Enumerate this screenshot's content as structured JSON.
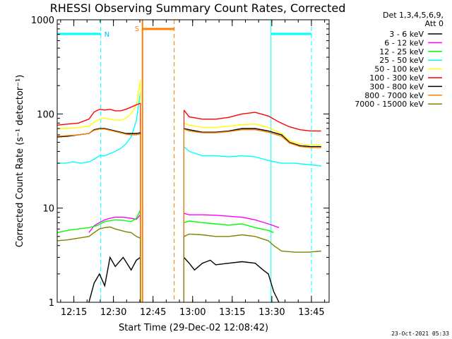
{
  "chart_data": {
    "type": "line",
    "title": "RHESSI Observing Summary Count Rates, Corrected",
    "xlabel": "Start Time (29-Dec-02 12:08:42)",
    "ylabel": "Corrected Count Rate (s⁻¹ detector⁻¹)",
    "yscale": "log",
    "ylim": [
      1,
      1000
    ],
    "y_ticks": [
      "1",
      "10",
      "100",
      "1000"
    ],
    "xlim_minutes": [
      0,
      103
    ],
    "x_ticks": [
      {
        "label": "12:15",
        "minute": 6.3
      },
      {
        "label": "12:30",
        "minute": 21.3
      },
      {
        "label": "12:45",
        "minute": 36.3
      },
      {
        "label": "13:00",
        "minute": 51.3
      },
      {
        "label": "13:15",
        "minute": 66.3
      },
      {
        "label": "13:30",
        "minute": 81.3
      },
      {
        "label": "13:45",
        "minute": 96.3
      }
    ],
    "detector_info": [
      "Det 1,3,4,5,6,9,",
      "Att 0"
    ],
    "timestamp": "23-Oct-2021 05:33",
    "data_gap_minutes": [
      31.8,
      47.8
    ],
    "night_intervals": [
      {
        "label": "N",
        "start": 0,
        "end": 16.5
      },
      {
        "label": "",
        "start": 81.0,
        "end": 96.3
      }
    ],
    "saa_interval": {
      "label": "S",
      "start": 32.3,
      "end": 44.3
    },
    "series": [
      {
        "name": "3 - 6 keV",
        "color": "#000000",
        "x": [
          12,
          14,
          16,
          18,
          20,
          22,
          25,
          28,
          30,
          31.5,
          48,
          50,
          52,
          55,
          58,
          60,
          65,
          70,
          75,
          78,
          80,
          82,
          84
        ],
        "y": [
          1.0,
          1.6,
          2.0,
          1.5,
          3.0,
          2.4,
          3.0,
          2.2,
          2.8,
          3.0,
          3.0,
          2.6,
          2.2,
          2.6,
          2.8,
          2.5,
          2.6,
          2.7,
          2.6,
          2.2,
          2.0,
          1.3,
          1.0
        ]
      },
      {
        "name": "6 - 12 keV",
        "color": "#ff00ff",
        "x": [
          12,
          14,
          16,
          18,
          20,
          22,
          25,
          28,
          30,
          31.5,
          48,
          50,
          55,
          60,
          65,
          70,
          75,
          80,
          82,
          84
        ],
        "y": [
          5.5,
          6.5,
          7.0,
          7.5,
          7.8,
          8.0,
          8.0,
          7.8,
          7.6,
          8.5,
          8.8,
          8.5,
          8.5,
          8.4,
          8.2,
          8.0,
          7.5,
          6.8,
          6.5,
          6.2
        ]
      },
      {
        "name": "12 - 25 keV",
        "color": "#00ff00",
        "x": [
          0,
          4,
          8,
          12,
          15,
          18,
          22,
          25,
          28,
          30,
          31.5,
          48,
          50,
          55,
          60,
          65,
          70,
          75,
          80,
          82
        ],
        "y": [
          5.5,
          5.8,
          6.0,
          6.2,
          6.5,
          7.2,
          7.5,
          7.4,
          7.2,
          7.8,
          9.5,
          7.0,
          7.3,
          7.0,
          6.8,
          6.6,
          6.8,
          6.2,
          5.8,
          5.5
        ]
      },
      {
        "name": "25 - 50 keV",
        "color": "#00ffff",
        "x": [
          0,
          3,
          6,
          9,
          12,
          14,
          16,
          18,
          20,
          22,
          24,
          26,
          28,
          30,
          31.5,
          48,
          50,
          55,
          60,
          65,
          70,
          75,
          80,
          85,
          90,
          95,
          100
        ],
        "y": [
          30,
          30,
          31,
          30,
          31,
          33,
          36,
          36,
          38,
          40,
          43,
          48,
          57,
          85,
          170,
          45,
          40,
          36,
          36,
          35,
          36,
          35,
          32,
          30,
          30,
          29,
          28
        ]
      },
      {
        "name": "50 - 100 keV",
        "color": "#ffff00",
        "x": [
          0,
          4,
          8,
          12,
          14,
          16,
          18,
          20,
          22,
          24,
          26,
          28,
          30,
          31.5,
          48,
          50,
          55,
          60,
          65,
          70,
          75,
          80,
          85,
          88,
          92,
          96,
          100
        ],
        "y": [
          70,
          70,
          72,
          74,
          82,
          88,
          90,
          88,
          86,
          86,
          90,
          100,
          125,
          230,
          80,
          76,
          72,
          72,
          74,
          77,
          78,
          72,
          62,
          52,
          48,
          47,
          47
        ]
      },
      {
        "name": "100 - 300 keV",
        "color": "#ff0000",
        "x": [
          0,
          4,
          8,
          12,
          14,
          16,
          18,
          20,
          22,
          24,
          26,
          28,
          30,
          31.5,
          48,
          50,
          55,
          60,
          65,
          70,
          75,
          80,
          84,
          88,
          92,
          96,
          100
        ],
        "y": [
          76,
          78,
          80,
          88,
          105,
          112,
          110,
          112,
          108,
          108,
          112,
          118,
          125,
          130,
          110,
          93,
          88,
          88,
          92,
          100,
          104,
          95,
          82,
          73,
          68,
          66,
          66
        ]
      },
      {
        "name": "300 - 800 keV",
        "color": "#000000",
        "x": [
          0,
          4,
          8,
          12,
          14,
          16,
          18,
          20,
          22,
          24,
          26,
          28,
          30,
          31.5,
          48,
          50,
          55,
          60,
          65,
          70,
          75,
          80,
          85,
          88,
          92,
          96,
          100
        ],
        "y": [
          57,
          58,
          60,
          62,
          68,
          70,
          70,
          68,
          66,
          64,
          62,
          62,
          62,
          63,
          70,
          68,
          64,
          64,
          66,
          70,
          70,
          66,
          60,
          50,
          46,
          45,
          45
        ]
      },
      {
        "name": "800 - 7000 keV",
        "color": "#ff8000",
        "x": [
          0,
          4,
          8,
          12,
          14,
          16,
          18,
          20,
          22,
          24,
          26,
          28,
          30,
          31.5,
          48,
          50,
          55,
          60,
          65,
          70,
          75,
          80,
          85,
          88,
          92,
          96,
          100
        ],
        "y": [
          58,
          59,
          60,
          62,
          67,
          69,
          69,
          67,
          65,
          63,
          61,
          60,
          60,
          61,
          69,
          66,
          63,
          63,
          65,
          68,
          68,
          64,
          58,
          49,
          45,
          44,
          44
        ]
      },
      {
        "name": "7000 - 15000 keV",
        "color": "#808000",
        "x": [
          0,
          4,
          8,
          12,
          14,
          16,
          18,
          20,
          22,
          24,
          26,
          28,
          30,
          31.5,
          48,
          50,
          55,
          60,
          65,
          70,
          75,
          80,
          82,
          85,
          90,
          95,
          100
        ],
        "y": [
          4.5,
          4.6,
          4.8,
          5.0,
          5.5,
          6.0,
          6.2,
          6.3,
          6.0,
          5.8,
          5.6,
          5.5,
          5.0,
          4.8,
          5.0,
          5.3,
          5.2,
          5.0,
          5.0,
          5.2,
          5.0,
          4.5,
          4.0,
          3.5,
          3.4,
          3.4,
          3.5
        ]
      }
    ]
  }
}
